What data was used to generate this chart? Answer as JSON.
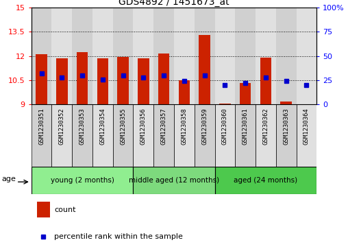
{
  "title": "GDS4892 / 1451673_at",
  "samples": [
    "GSM1230351",
    "GSM1230352",
    "GSM1230353",
    "GSM1230354",
    "GSM1230355",
    "GSM1230356",
    "GSM1230357",
    "GSM1230358",
    "GSM1230359",
    "GSM1230360",
    "GSM1230361",
    "GSM1230362",
    "GSM1230363",
    "GSM1230364"
  ],
  "counts": [
    12.1,
    11.85,
    12.25,
    11.85,
    11.95,
    11.85,
    12.15,
    10.5,
    13.3,
    9.05,
    10.35,
    11.9,
    9.2,
    9.0
  ],
  "percentiles": [
    32,
    28,
    30,
    26,
    30,
    28,
    30,
    24,
    30,
    20,
    22,
    28,
    24,
    20
  ],
  "ylim_left": [
    9,
    15
  ],
  "ylim_right": [
    0,
    100
  ],
  "yticks_left": [
    9,
    10.5,
    12,
    13.5,
    15
  ],
  "yticks_right": [
    0,
    25,
    50,
    75,
    100
  ],
  "ytick_labels_left": [
    "9",
    "10.5",
    "12",
    "13.5",
    "15"
  ],
  "ytick_labels_right": [
    "0",
    "25",
    "50",
    "75",
    "100%"
  ],
  "groups": [
    {
      "label": "young (2 months)",
      "start": 0,
      "end": 5,
      "color": "#90ee90"
    },
    {
      "label": "middle aged (12 months)",
      "start": 5,
      "end": 9,
      "color": "#7dda7d"
    },
    {
      "label": "aged (24 months)",
      "start": 9,
      "end": 14,
      "color": "#4dc94d"
    }
  ],
  "bar_color": "#cc2200",
  "percentile_color": "#0000cc",
  "bar_bottom": 9,
  "bar_width": 0.55,
  "col_bg_even": "#d0d0d0",
  "col_bg_odd": "#e0e0e0",
  "age_label": "age",
  "legend_count_label": "count",
  "legend_percentile_label": "percentile rank within the sample"
}
